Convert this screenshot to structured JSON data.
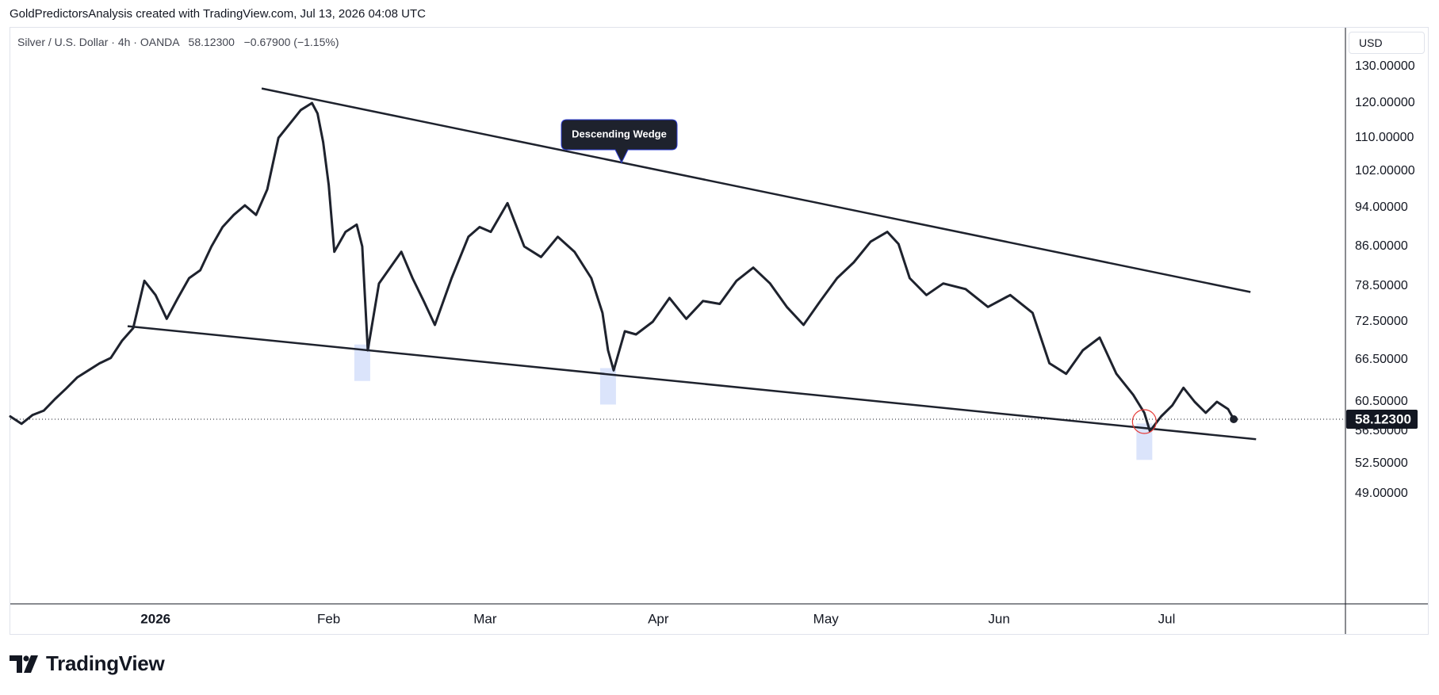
{
  "header": {
    "caption": "GoldPredictorsAnalysis created with TradingView.com, Jul 13, 2026 04:08 UTC"
  },
  "symbol": {
    "name": "Silver / U.S. Dollar",
    "interval": "4h",
    "source": "OANDA",
    "price": "58.12300",
    "change": "−0.67900",
    "change_pct": "(−1.15%)"
  },
  "currency_label": "USD",
  "brand": {
    "name": "TradingView"
  },
  "colors": {
    "line": "#1e222d",
    "trendline": "#1e222d",
    "highlight": "#dbe4fb",
    "callout_bg": "#1e222d",
    "marker_circle": "#e53935"
  },
  "chart_data": {
    "type": "line",
    "title": "",
    "xlabel": "",
    "ylabel": "",
    "ylim": [
      45,
      134
    ],
    "xlim": [
      "2025-12-06",
      "2026-08-02"
    ],
    "y_ticks": [
      "130.00000",
      "120.00000",
      "110.00000",
      "102.00000",
      "94.00000",
      "86.00000",
      "78.50000",
      "72.50000",
      "66.50000",
      "60.50000",
      "56.50000",
      "52.50000",
      "49.00000"
    ],
    "x_ticks": [
      {
        "label": "2026",
        "date": "2026-01-01"
      },
      {
        "label": "Feb",
        "date": "2026-02-01"
      },
      {
        "label": "Mar",
        "date": "2026-03-01"
      },
      {
        "label": "Apr",
        "date": "2026-04-01"
      },
      {
        "label": "May",
        "date": "2026-05-01"
      },
      {
        "label": "Jun",
        "date": "2026-06-01"
      },
      {
        "label": "Jul",
        "date": "2026-07-01"
      }
    ],
    "current_price": {
      "label": "58.12300",
      "value": 58.123
    },
    "series": [
      {
        "x": [
          "2025-12-06",
          "2025-12-08",
          "2025-12-10",
          "2025-12-12",
          "2025-12-14",
          "2025-12-16",
          "2025-12-18",
          "2025-12-20",
          "2025-12-22",
          "2025-12-24",
          "2025-12-26",
          "2025-12-28",
          "2025-12-30",
          "2026-01-01",
          "2026-01-03",
          "2026-01-05",
          "2026-01-07",
          "2026-01-09",
          "2026-01-11",
          "2026-01-13",
          "2026-01-15",
          "2026-01-17",
          "2026-01-19",
          "2026-01-21",
          "2026-01-23",
          "2026-01-25",
          "2026-01-27",
          "2026-01-29",
          "2026-01-30",
          "2026-01-31",
          "2026-02-01",
          "2026-02-02",
          "2026-02-04",
          "2026-02-06",
          "2026-02-07",
          "2026-02-08",
          "2026-02-10",
          "2026-02-12",
          "2026-02-14",
          "2026-02-16",
          "2026-02-18",
          "2026-02-20",
          "2026-02-23",
          "2026-02-26",
          "2026-02-28",
          "2026-03-02",
          "2026-03-05",
          "2026-03-08",
          "2026-03-11",
          "2026-03-14",
          "2026-03-17",
          "2026-03-20",
          "2026-03-22",
          "2026-03-23",
          "2026-03-24",
          "2026-03-26",
          "2026-03-28",
          "2026-03-31",
          "2026-04-03",
          "2026-04-06",
          "2026-04-09",
          "2026-04-12",
          "2026-04-15",
          "2026-04-18",
          "2026-04-21",
          "2026-04-24",
          "2026-04-27",
          "2026-04-30",
          "2026-05-03",
          "2026-05-06",
          "2026-05-09",
          "2026-05-12",
          "2026-05-14",
          "2026-05-16",
          "2026-05-19",
          "2026-05-22",
          "2026-05-26",
          "2026-05-30",
          "2026-06-03",
          "2026-06-07",
          "2026-06-10",
          "2026-06-13",
          "2026-06-16",
          "2026-06-19",
          "2026-06-22",
          "2026-06-25",
          "2026-06-27",
          "2026-06-28",
          "2026-06-30",
          "2026-07-02",
          "2026-07-04",
          "2026-07-06",
          "2026-07-08",
          "2026-07-10",
          "2026-07-12",
          "2026-07-13"
        ],
        "y": [
          58.5,
          57.5,
          58.7,
          59.3,
          60.9,
          62.4,
          64.0,
          65.0,
          66.0,
          66.8,
          69.5,
          71.5,
          79.5,
          77.0,
          73.0,
          76.5,
          80.0,
          81.5,
          86.0,
          90.0,
          92.5,
          94.5,
          92.5,
          98.0,
          110.0,
          114.0,
          118.0,
          120.0,
          117.0,
          109.0,
          99.0,
          85.0,
          89.0,
          90.5,
          86.0,
          68.0,
          79.0,
          82.0,
          85.0,
          80.0,
          76.0,
          72.0,
          80.0,
          88.0,
          90.0,
          89.0,
          95.0,
          86.0,
          84.0,
          88.0,
          85.0,
          80.0,
          74.0,
          68.0,
          65.0,
          71.0,
          70.5,
          72.5,
          76.5,
          73.0,
          76.0,
          75.5,
          79.5,
          82.0,
          79.0,
          75.0,
          72.0,
          76.0,
          80.0,
          83.0,
          87.0,
          89.0,
          86.5,
          80.0,
          77.0,
          79.0,
          78.0,
          75.0,
          77.0,
          74.0,
          66.0,
          64.5,
          68.0,
          70.0,
          64.5,
          61.5,
          59.0,
          56.5,
          58.5,
          60.0,
          62.5,
          60.5,
          59.0,
          60.5,
          59.5,
          58.12
        ]
      }
    ],
    "annotations": [
      {
        "type": "label",
        "text": "Descending Wedge"
      },
      {
        "type": "trendline",
        "role": "upper",
        "from": {
          "x": "2026-01-20",
          "y": 124.0
        },
        "to": {
          "x": "2026-07-16",
          "y": 77.5
        }
      },
      {
        "type": "trendline",
        "role": "lower",
        "from": {
          "x": "2025-12-27",
          "y": 71.8
        },
        "to": {
          "x": "2026-07-17",
          "y": 55.5
        }
      },
      {
        "type": "highlight",
        "x": "2026-02-07"
      },
      {
        "type": "highlight",
        "x": "2026-03-23"
      },
      {
        "type": "highlight",
        "x": "2026-06-27"
      },
      {
        "type": "circle-marker",
        "x": "2026-06-27",
        "y": 57.8
      }
    ]
  }
}
